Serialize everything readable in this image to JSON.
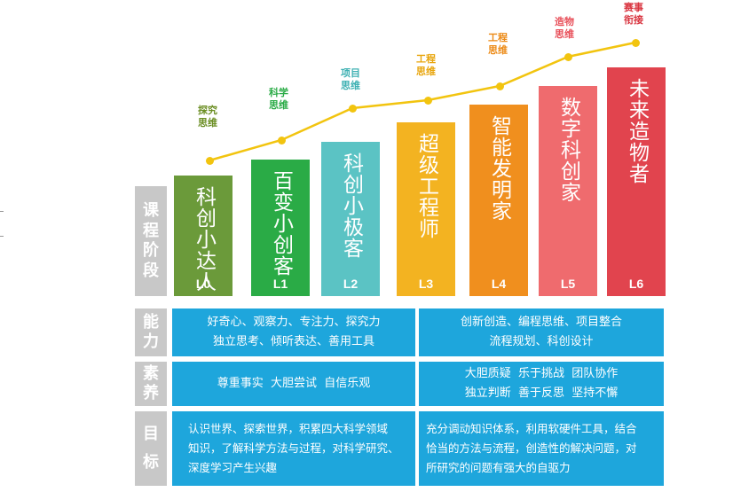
{
  "row_headers": {
    "stage": [
      "课",
      "程",
      "阶",
      "段"
    ],
    "ability": [
      "能",
      "力"
    ],
    "quality": [
      "素",
      "养"
    ],
    "goal": [
      "目",
      "标"
    ]
  },
  "levels": [
    {
      "name": "科创小达人",
      "level": "L0",
      "color": "#6b9a3a"
    },
    {
      "name": "百变小创客",
      "level": "L1",
      "color": "#2aab46"
    },
    {
      "name": "科创小极客",
      "level": "L2",
      "color": "#5bc3c4"
    },
    {
      "name": "超级工程师",
      "level": "L3",
      "color": "#f3b321"
    },
    {
      "name": "智能发明家",
      "level": "L4",
      "color": "#f08f1e"
    },
    {
      "name": "数字科创家",
      "level": "L5",
      "color": "#ef6b6e"
    },
    {
      "name": "未来造物者",
      "level": "L6",
      "color": "#e1444e"
    }
  ],
  "growth_points": [
    {
      "label": "探究\n思维",
      "color": "#6b8e23"
    },
    {
      "label": "科学\n思维",
      "color": "#2aab46"
    },
    {
      "label": "项目\n思维",
      "color": "#3fb1b3"
    },
    {
      "label": "工程\n思维",
      "color": "#e8a50c"
    },
    {
      "label": "工程\n思维",
      "color": "#ec8a16"
    },
    {
      "label": "造物\n思维",
      "color": "#e8505a"
    },
    {
      "label": "赛事\n衔接",
      "color": "#d9343f"
    }
  ],
  "line_color": "#f2c40f",
  "ability": {
    "left": [
      "好奇心、观察力、专注力、探究力",
      "独立思考、倾听表达、善用工具"
    ],
    "right": [
      "创新创造、编程思维、项目整合",
      "流程规划、科创设计"
    ]
  },
  "quality": {
    "left": [
      "尊重事实  大胆尝试  自信乐观"
    ],
    "right": [
      "大胆质疑  乐于挑战  团队协作",
      "独立判断  善于反思  坚持不懈"
    ]
  },
  "goal": {
    "left": [
      "认识世界、探索世界，积累四大科学领域",
      "知识，了解科学方法与过程，对科学研究、",
      "深度学习产生兴趣"
    ],
    "right": [
      "充分调动知识体系，利用软硬件工具，结合",
      "恰当的方法与流程，创造性的解决问题，对",
      "所研究的问题有强大的自驱力"
    ]
  }
}
